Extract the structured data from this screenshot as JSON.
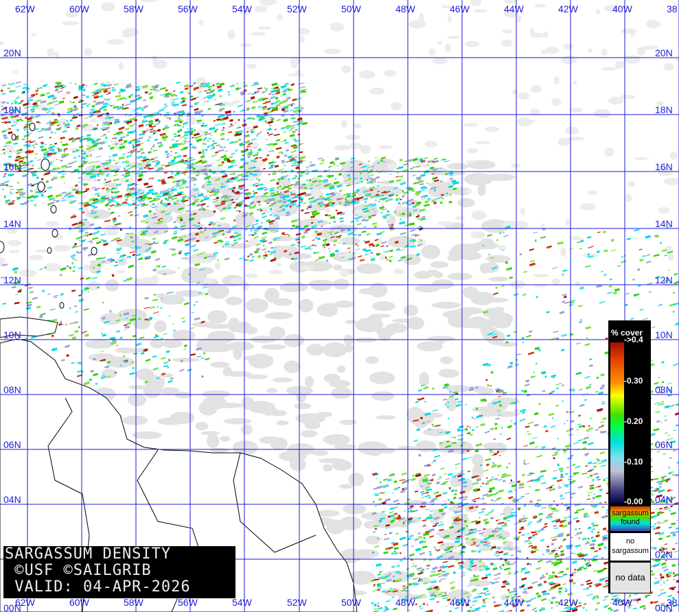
{
  "title": {
    "line1": "SARGASSUM DENSITY",
    "line2": " ©USF ©SAILGRIB",
    "line3": " VALID: 04-APR-2026"
  },
  "grid": {
    "longitudes": [
      "62W",
      "60W",
      "58W",
      "56W",
      "54W",
      "52W",
      "50W",
      "48W",
      "46W",
      "44W",
      "42W",
      "40W",
      "38"
    ],
    "latitudes": [
      "20N",
      "18N",
      "16N",
      "14N",
      "12N",
      "10N",
      "08N",
      "06N",
      "04N",
      "02N",
      "00N"
    ],
    "line_color": "#1a1adb"
  },
  "legend": {
    "header": "% cover",
    "ticks": [
      "->0.4",
      "-0.30",
      "-0.20",
      "-0.10",
      "-0.00"
    ],
    "found_label": [
      "sargassum",
      "found"
    ],
    "no_sargassum_label": [
      "no",
      "sargassum"
    ],
    "no_data_label": "no data"
  },
  "colors": {
    "high": "#b01000",
    "mid": "#30d000",
    "low": "#00d8e0",
    "no_data": "#e2e2e2",
    "land_outline": "#000000"
  }
}
